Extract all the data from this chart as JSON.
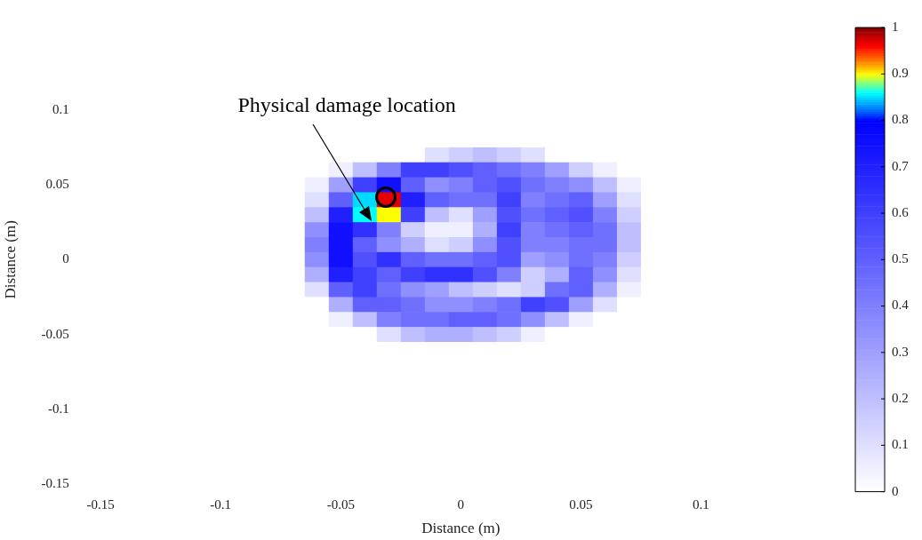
{
  "chart_data": {
    "type": "heatmap",
    "xlabel": "Distance (m)",
    "ylabel": "Distance (m)",
    "annotations": [
      "Physical damage location"
    ],
    "clim": [
      0,
      1
    ],
    "cticks": [
      0,
      0.1,
      0.2,
      0.3,
      0.4,
      0.5,
      0.6,
      0.7,
      0.8,
      0.9,
      1
    ],
    "categories": [
      "-0.15",
      null,
      null,
      null,
      null,
      "-0.1",
      null,
      null,
      null,
      null,
      "-0.05",
      null,
      null,
      null,
      null,
      "0",
      null,
      null,
      null,
      null,
      "0.05",
      null,
      null,
      null,
      null,
      "0.1",
      null,
      null,
      null,
      null,
      null
    ],
    "y_categories": [
      null,
      null,
      null,
      null,
      null,
      "0.1",
      null,
      null,
      null,
      null,
      "0.05",
      null,
      null,
      null,
      null,
      "0",
      null,
      null,
      null,
      null,
      "-0.05",
      null,
      null,
      null,
      null,
      "-0.1",
      null,
      null,
      null,
      null,
      "-0.15"
    ],
    "cells": [
      [
        0,
        0,
        0,
        0,
        0,
        0,
        0,
        0,
        0,
        0,
        0,
        0,
        0,
        0,
        0,
        0,
        0,
        0,
        0,
        0,
        0,
        0,
        0,
        0,
        0,
        0,
        0,
        0,
        0,
        0,
        0
      ],
      [
        0,
        0,
        0,
        0,
        0,
        0,
        0,
        0,
        0,
        0,
        0,
        0,
        0,
        0,
        0,
        0,
        0,
        0,
        0,
        0,
        0,
        0,
        0,
        0,
        0,
        0,
        0,
        0,
        0,
        0,
        0
      ],
      [
        0,
        0,
        0,
        0,
        0,
        0,
        0,
        0,
        0,
        0,
        0,
        0,
        0,
        0,
        0,
        0,
        0,
        0,
        0,
        0,
        0,
        0,
        0,
        0,
        0,
        0,
        0,
        0,
        0,
        0,
        0
      ],
      [
        0,
        0,
        0,
        0,
        0,
        0,
        0,
        0,
        0,
        0,
        0,
        0,
        0,
        0,
        0,
        0,
        0,
        0,
        0,
        0,
        0,
        0,
        0,
        0,
        0,
        0,
        0,
        0,
        0,
        0,
        0
      ],
      [
        0,
        0,
        0,
        0,
        0,
        0,
        0,
        0,
        0,
        0,
        0,
        0,
        0,
        0,
        0,
        0,
        0,
        0,
        0,
        0,
        0,
        0,
        0,
        0,
        0,
        0,
        0,
        0,
        0,
        0,
        0
      ],
      [
        0,
        0,
        0,
        0,
        0,
        0,
        0,
        0,
        0,
        0,
        0,
        0,
        0,
        0,
        0,
        0,
        0,
        0,
        0,
        0,
        0,
        0,
        0,
        0,
        0,
        0,
        0,
        0,
        0,
        0,
        0
      ],
      [
        0,
        0,
        0,
        0,
        0,
        0,
        0,
        0,
        0,
        0,
        0,
        0,
        0,
        0,
        0,
        0,
        0,
        0,
        0,
        0,
        0,
        0,
        0,
        0,
        0,
        0,
        0,
        0,
        0,
        0,
        0
      ],
      [
        0,
        0,
        0,
        0,
        0,
        0,
        0,
        0,
        0,
        0,
        0,
        0,
        0,
        0,
        0,
        0,
        0,
        0,
        0,
        0,
        0,
        0,
        0,
        0,
        0,
        0,
        0,
        0,
        0,
        0,
        0
      ],
      [
        0,
        0,
        0,
        0,
        0,
        0,
        0,
        0,
        0,
        0,
        0,
        0,
        0,
        0,
        0.1,
        0.15,
        0.2,
        0.15,
        0.1,
        0,
        0,
        0,
        0,
        0,
        0,
        0,
        0,
        0,
        0,
        0,
        0
      ],
      [
        0,
        0,
        0,
        0,
        0,
        0,
        0,
        0,
        0,
        0,
        0.05,
        0.2,
        0.4,
        0.6,
        0.6,
        0.55,
        0.5,
        0.45,
        0.4,
        0.3,
        0.15,
        0.05,
        0,
        0,
        0,
        0,
        0,
        0,
        0,
        0,
        0
      ],
      [
        0,
        0,
        0,
        0,
        0,
        0,
        0,
        0,
        0,
        0.05,
        0.3,
        0.6,
        0.75,
        0.5,
        0.35,
        0.4,
        0.5,
        0.55,
        0.45,
        0.4,
        0.35,
        0.2,
        0.05,
        0,
        0,
        0,
        0,
        0,
        0,
        0,
        0
      ],
      [
        0,
        0,
        0,
        0,
        0,
        0,
        0,
        0,
        0,
        0.1,
        0.5,
        0.85,
        0.97,
        0.7,
        0.5,
        0.45,
        0.45,
        0.6,
        0.4,
        0.45,
        0.5,
        0.3,
        0.1,
        0,
        0,
        0,
        0,
        0,
        0,
        0,
        0
      ],
      [
        0,
        0,
        0,
        0,
        0,
        0,
        0,
        0,
        0,
        0.2,
        0.7,
        0.86,
        0.9,
        0.6,
        0.2,
        0.1,
        0.3,
        0.55,
        0.45,
        0.5,
        0.55,
        0.4,
        0.15,
        0,
        0,
        0,
        0,
        0,
        0,
        0,
        0
      ],
      [
        0,
        0,
        0,
        0,
        0,
        0,
        0,
        0,
        0,
        0.35,
        0.75,
        0.65,
        0.4,
        0.15,
        0.05,
        0.05,
        0.25,
        0.6,
        0.4,
        0.45,
        0.5,
        0.45,
        0.2,
        0,
        0,
        0,
        0,
        0,
        0,
        0,
        0
      ],
      [
        0,
        0,
        0,
        0,
        0,
        0,
        0,
        0,
        0,
        0.4,
        0.75,
        0.5,
        0.35,
        0.25,
        0.1,
        0.15,
        0.35,
        0.55,
        0.4,
        0.4,
        0.45,
        0.45,
        0.2,
        0,
        0,
        0,
        0,
        0,
        0,
        0,
        0
      ],
      [
        0,
        0,
        0,
        0,
        0,
        0,
        0,
        0,
        0,
        0.35,
        0.75,
        0.55,
        0.65,
        0.5,
        0.45,
        0.45,
        0.5,
        0.55,
        0.3,
        0.35,
        0.45,
        0.4,
        0.15,
        0,
        0,
        0,
        0,
        0,
        0,
        0,
        0
      ],
      [
        0,
        0,
        0,
        0,
        0,
        0,
        0,
        0,
        0,
        0.25,
        0.7,
        0.6,
        0.5,
        0.6,
        0.65,
        0.65,
        0.55,
        0.4,
        0.15,
        0.25,
        0.5,
        0.35,
        0.1,
        0,
        0,
        0,
        0,
        0,
        0,
        0,
        0
      ],
      [
        0,
        0,
        0,
        0,
        0,
        0,
        0,
        0,
        0,
        0.1,
        0.5,
        0.6,
        0.45,
        0.35,
        0.3,
        0.2,
        0.15,
        0.1,
        0.15,
        0.45,
        0.5,
        0.25,
        0.05,
        0,
        0,
        0,
        0,
        0,
        0,
        0,
        0
      ],
      [
        0,
        0,
        0,
        0,
        0,
        0,
        0,
        0,
        0,
        0,
        0.25,
        0.5,
        0.5,
        0.45,
        0.35,
        0.35,
        0.4,
        0.45,
        0.6,
        0.55,
        0.3,
        0.1,
        0,
        0,
        0,
        0,
        0,
        0,
        0,
        0,
        0
      ],
      [
        0,
        0,
        0,
        0,
        0,
        0,
        0,
        0,
        0,
        0,
        0.05,
        0.2,
        0.4,
        0.45,
        0.45,
        0.5,
        0.5,
        0.45,
        0.35,
        0.2,
        0.05,
        0,
        0,
        0,
        0,
        0,
        0,
        0,
        0,
        0,
        0
      ],
      [
        0,
        0,
        0,
        0,
        0,
        0,
        0,
        0,
        0,
        0,
        0,
        0,
        0.1,
        0.2,
        0.25,
        0.25,
        0.2,
        0.15,
        0.05,
        0,
        0,
        0,
        0,
        0,
        0,
        0,
        0,
        0,
        0,
        0,
        0
      ],
      [
        0,
        0,
        0,
        0,
        0,
        0,
        0,
        0,
        0,
        0,
        0,
        0,
        0,
        0,
        0,
        0,
        0,
        0,
        0,
        0,
        0,
        0,
        0,
        0,
        0,
        0,
        0,
        0,
        0,
        0,
        0
      ],
      [
        0,
        0,
        0,
        0,
        0,
        0,
        0,
        0,
        0,
        0,
        0,
        0,
        0,
        0,
        0,
        0,
        0,
        0,
        0,
        0,
        0,
        0,
        0,
        0,
        0,
        0,
        0,
        0,
        0,
        0,
        0
      ],
      [
        0,
        0,
        0,
        0,
        0,
        0,
        0,
        0,
        0,
        0,
        0,
        0,
        0,
        0,
        0,
        0,
        0,
        0,
        0,
        0,
        0,
        0,
        0,
        0,
        0,
        0,
        0,
        0,
        0,
        0,
        0
      ],
      [
        0,
        0,
        0,
        0,
        0,
        0,
        0,
        0,
        0,
        0,
        0,
        0,
        0,
        0,
        0,
        0,
        0,
        0,
        0,
        0,
        0,
        0,
        0,
        0,
        0,
        0,
        0,
        0,
        0,
        0,
        0
      ],
      [
        0,
        0,
        0,
        0,
        0,
        0,
        0,
        0,
        0,
        0,
        0,
        0,
        0,
        0,
        0,
        0,
        0,
        0,
        0,
        0,
        0,
        0,
        0,
        0,
        0,
        0,
        0,
        0,
        0,
        0,
        0
      ],
      [
        0,
        0,
        0,
        0,
        0,
        0,
        0,
        0,
        0,
        0,
        0,
        0,
        0,
        0,
        0,
        0,
        0,
        0,
        0,
        0,
        0,
        0,
        0,
        0,
        0,
        0,
        0,
        0,
        0,
        0,
        0
      ],
      [
        0,
        0,
        0,
        0,
        0,
        0,
        0,
        0,
        0,
        0,
        0,
        0,
        0,
        0,
        0,
        0,
        0,
        0,
        0,
        0,
        0,
        0,
        0,
        0,
        0,
        0,
        0,
        0,
        0,
        0,
        0
      ],
      [
        0,
        0,
        0,
        0,
        0,
        0,
        0,
        0,
        0,
        0,
        0,
        0,
        0,
        0,
        0,
        0,
        0,
        0,
        0,
        0,
        0,
        0,
        0,
        0,
        0,
        0,
        0,
        0,
        0,
        0,
        0
      ],
      [
        0,
        0,
        0,
        0,
        0,
        0,
        0,
        0,
        0,
        0,
        0,
        0,
        0,
        0,
        0,
        0,
        0,
        0,
        0,
        0,
        0,
        0,
        0,
        0,
        0,
        0,
        0,
        0,
        0,
        0,
        0
      ],
      [
        0,
        0,
        0,
        0,
        0,
        0,
        0,
        0,
        0,
        0,
        0,
        0,
        0,
        0,
        0,
        0,
        0,
        0,
        0,
        0,
        0,
        0,
        0,
        0,
        0,
        0,
        0,
        0,
        0,
        0,
        0
      ]
    ]
  }
}
